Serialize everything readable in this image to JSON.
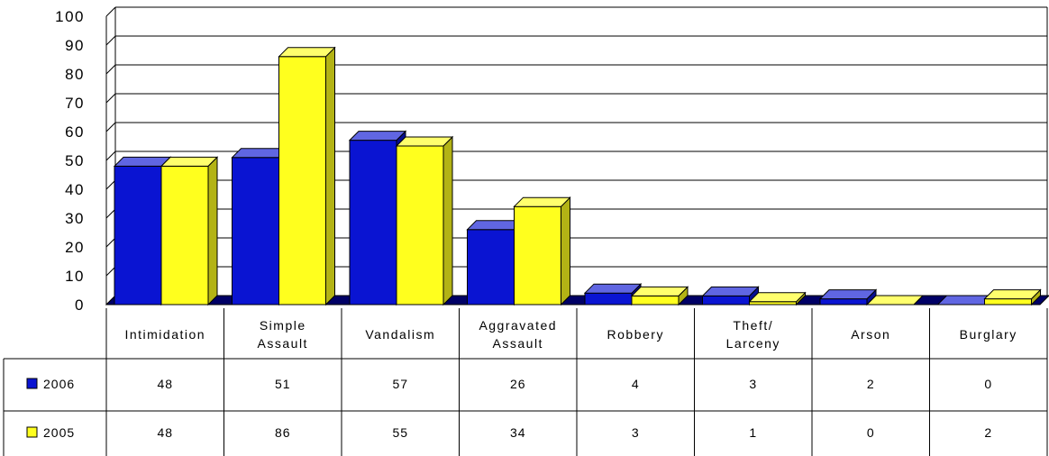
{
  "chart_data": {
    "type": "bar",
    "categories": [
      [
        "Intimidation"
      ],
      [
        "Simple",
        "Assault"
      ],
      [
        "Vandalism"
      ],
      [
        "Aggravated",
        "Assault"
      ],
      [
        "Robbery"
      ],
      [
        "Theft/",
        "Larceny"
      ],
      [
        "Arson"
      ],
      [
        "Burglary"
      ]
    ],
    "series": [
      {
        "name": "2006",
        "color": "#0A14D2",
        "values": [
          48,
          51,
          57,
          26,
          4,
          3,
          2,
          0
        ]
      },
      {
        "name": "2005",
        "color": "#FFFF1E",
        "values": [
          48,
          86,
          55,
          34,
          3,
          1,
          0,
          2
        ]
      }
    ],
    "ylim": [
      0,
      100
    ],
    "yticks": [
      "0",
      "10",
      "20",
      "30",
      "40",
      "50",
      "60",
      "70",
      "80",
      "90",
      "100"
    ],
    "grid": true,
    "legend": "data-table",
    "title": "",
    "xlabel": "",
    "ylabel": ""
  }
}
